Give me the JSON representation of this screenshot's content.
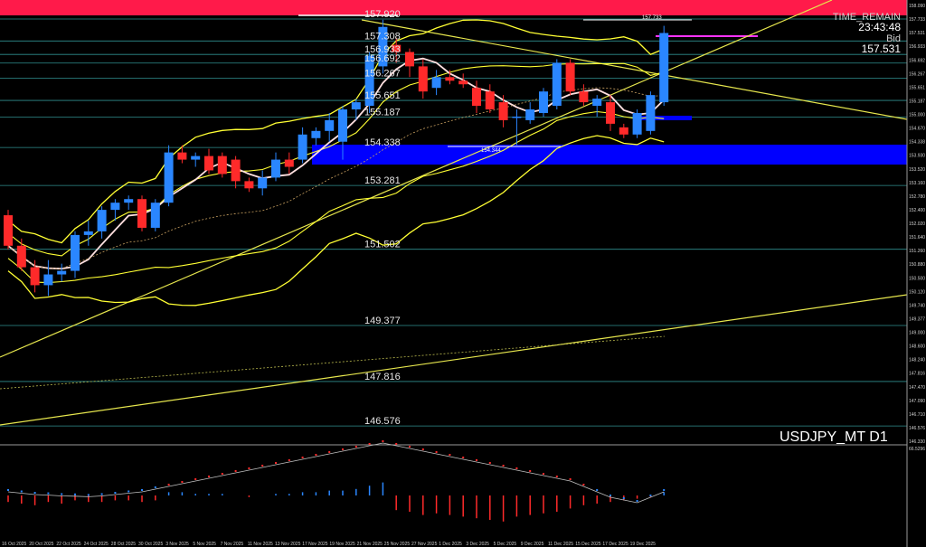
{
  "symbol_label": "USDJPY_MT D1",
  "time_remain": {
    "label": "TIME_REMAIN",
    "value": "23:43:48"
  },
  "bid": {
    "label": "Bid",
    "value": "157.531"
  },
  "high_marker_label": "157.733",
  "low_marker_label": "154.344",
  "levels": [
    {
      "label": "157.920",
      "value": 157.92
    },
    {
      "label": "157.308",
      "value": 157.308
    },
    {
      "label": "156.933",
      "value": 156.933
    },
    {
      "label": "156.692",
      "value": 156.692
    },
    {
      "label": "156.267",
      "value": 156.267
    },
    {
      "label": "155.651",
      "value": 155.651
    },
    {
      "label": "155.187",
      "value": 155.187
    },
    {
      "label": "154.338",
      "value": 154.338
    },
    {
      "label": "153.281",
      "value": 153.281
    },
    {
      "label": "151.502",
      "value": 151.502
    },
    {
      "label": "149.377",
      "value": 149.377
    },
    {
      "label": "147.816",
      "value": 147.816
    },
    {
      "label": "146.576",
      "value": 146.576
    }
  ],
  "price_scale": [
    "158.090",
    "157.733",
    "157.531",
    "156.933",
    "156.692",
    "156.267",
    "155.651",
    "155.187",
    "155.000",
    "154.670",
    "154.338",
    "153.930",
    "153.520",
    "153.160",
    "152.780",
    "152.400",
    "152.020",
    "151.640",
    "151.260",
    "150.880",
    "150.500",
    "150.120",
    "149.740",
    "149.377",
    "149.000",
    "148.600",
    "148.240",
    "147.816",
    "147.470",
    "147.090",
    "146.710",
    "146.576",
    "146.330"
  ],
  "indicator_scale_top": "66.5296",
  "dates": [
    "16 Oct 2025",
    "20 Oct 2025",
    "22 Oct 2025",
    "24 Oct 2025",
    "28 Oct 2025",
    "30 Oct 2025",
    "3 Nov 2025",
    "5 Nov 2025",
    "7 Nov 2025",
    "11 Nov 2025",
    "13 Nov 2025",
    "17 Nov 2025",
    "19 Nov 2025",
    "21 Nov 2025",
    "25 Nov 2025",
    "27 Nov 2025",
    "1 Dec 2025",
    "3 Dec 2025",
    "5 Dec 2025",
    "9 Dec 2025",
    "11 Dec 2025",
    "15 Dec 2025",
    "17 Dec 2025",
    "19 Dec 2025"
  ],
  "colors": {
    "bull": "#2a86ff",
    "bear": "#ff2a2a",
    "band": "#0000ff",
    "top_bar": "#ff1a4a",
    "bollinger": "#ffff33",
    "ma": "#ffe0e0",
    "indicator_line": "#bfbfbf"
  },
  "candles": [
    {
      "o": 152.45,
      "h": 152.6,
      "l": 151.5,
      "c": 151.6
    },
    {
      "o": 151.6,
      "h": 151.8,
      "l": 150.9,
      "c": 151.0
    },
    {
      "o": 151.0,
      "h": 151.2,
      "l": 150.3,
      "c": 150.5
    },
    {
      "o": 150.5,
      "h": 151.2,
      "l": 150.2,
      "c": 150.8
    },
    {
      "o": 150.8,
      "h": 151.1,
      "l": 150.6,
      "c": 150.9
    },
    {
      "o": 150.9,
      "h": 152.0,
      "l": 150.7,
      "c": 151.9
    },
    {
      "o": 151.9,
      "h": 152.3,
      "l": 151.6,
      "c": 152.0
    },
    {
      "o": 152.0,
      "h": 152.7,
      "l": 151.8,
      "c": 152.6
    },
    {
      "o": 152.6,
      "h": 152.9,
      "l": 152.3,
      "c": 152.8
    },
    {
      "o": 152.8,
      "h": 153.0,
      "l": 152.6,
      "c": 152.9
    },
    {
      "o": 152.9,
      "h": 153.0,
      "l": 152.0,
      "c": 152.1
    },
    {
      "o": 152.1,
      "h": 152.9,
      "l": 152.0,
      "c": 152.8
    },
    {
      "o": 152.8,
      "h": 154.4,
      "l": 152.7,
      "c": 154.2
    },
    {
      "o": 154.2,
      "h": 154.4,
      "l": 153.9,
      "c": 154.0
    },
    {
      "o": 154.0,
      "h": 154.2,
      "l": 153.8,
      "c": 154.1
    },
    {
      "o": 154.1,
      "h": 154.3,
      "l": 153.6,
      "c": 153.7
    },
    {
      "o": 154.1,
      "h": 154.2,
      "l": 153.5,
      "c": 153.6
    },
    {
      "o": 154.0,
      "h": 154.1,
      "l": 153.2,
      "c": 153.4
    },
    {
      "o": 153.4,
      "h": 153.5,
      "l": 153.1,
      "c": 153.2
    },
    {
      "o": 153.2,
      "h": 153.7,
      "l": 153.0,
      "c": 153.5
    },
    {
      "o": 153.5,
      "h": 154.2,
      "l": 153.4,
      "c": 154.0
    },
    {
      "o": 154.0,
      "h": 154.2,
      "l": 153.6,
      "c": 153.8
    },
    {
      "o": 154.0,
      "h": 154.9,
      "l": 153.9,
      "c": 154.7
    },
    {
      "o": 154.6,
      "h": 154.9,
      "l": 154.4,
      "c": 154.8
    },
    {
      "o": 154.8,
      "h": 155.3,
      "l": 154.5,
      "c": 155.1
    },
    {
      "o": 154.5,
      "h": 155.5,
      "l": 154.0,
      "c": 155.4
    },
    {
      "o": 155.4,
      "h": 155.7,
      "l": 155.1,
      "c": 155.6
    },
    {
      "o": 155.5,
      "h": 157.0,
      "l": 155.3,
      "c": 156.9
    },
    {
      "o": 156.6,
      "h": 157.9,
      "l": 156.4,
      "c": 157.7
    },
    {
      "o": 157.2,
      "h": 157.4,
      "l": 156.7,
      "c": 157.0
    },
    {
      "o": 157.0,
      "h": 157.1,
      "l": 156.3,
      "c": 156.6
    },
    {
      "o": 156.6,
      "h": 156.8,
      "l": 155.7,
      "c": 155.9
    },
    {
      "o": 156.0,
      "h": 156.5,
      "l": 155.8,
      "c": 156.3
    },
    {
      "o": 156.3,
      "h": 156.5,
      "l": 156.1,
      "c": 156.2
    },
    {
      "o": 156.2,
      "h": 156.4,
      "l": 156.0,
      "c": 156.1
    },
    {
      "o": 156.0,
      "h": 156.2,
      "l": 155.3,
      "c": 155.5
    },
    {
      "o": 155.9,
      "h": 156.1,
      "l": 155.3,
      "c": 155.4
    },
    {
      "o": 155.6,
      "h": 155.8,
      "l": 154.9,
      "c": 155.1
    },
    {
      "o": 155.2,
      "h": 155.4,
      "l": 154.4,
      "c": 155.2
    },
    {
      "o": 155.1,
      "h": 155.6,
      "l": 155.0,
      "c": 155.4
    },
    {
      "o": 155.3,
      "h": 156.0,
      "l": 155.2,
      "c": 155.9
    },
    {
      "o": 155.5,
      "h": 156.8,
      "l": 155.4,
      "c": 156.7
    },
    {
      "o": 156.7,
      "h": 156.8,
      "l": 155.8,
      "c": 155.9
    },
    {
      "o": 155.9,
      "h": 156.1,
      "l": 155.5,
      "c": 155.6
    },
    {
      "o": 155.5,
      "h": 155.8,
      "l": 155.2,
      "c": 155.7
    },
    {
      "o": 155.6,
      "h": 155.8,
      "l": 154.8,
      "c": 155.0
    },
    {
      "o": 154.9,
      "h": 155.0,
      "l": 154.6,
      "c": 154.7
    },
    {
      "o": 154.7,
      "h": 155.4,
      "l": 154.6,
      "c": 155.3
    },
    {
      "o": 154.8,
      "h": 155.9,
      "l": 154.7,
      "c": 155.8
    },
    {
      "o": 155.6,
      "h": 157.73,
      "l": 155.5,
      "c": 157.53
    }
  ],
  "indicator_bars": [
    -4,
    -5,
    -6,
    -4,
    -5,
    -3,
    -4,
    -4,
    -3,
    -3,
    -4,
    -3,
    2,
    2,
    1,
    1,
    1,
    0,
    -1,
    0,
    1,
    1,
    2,
    2,
    3,
    3,
    4,
    6,
    8,
    -9,
    -10,
    -12,
    -11,
    -12,
    -13,
    -14,
    -15,
    -16,
    -13,
    -12,
    -11,
    -10,
    -8,
    -6,
    -5,
    -4,
    -3,
    -2,
    -1,
    2
  ],
  "indicator_line": [
    -2,
    -2.5,
    -3,
    -3.2,
    -3.5,
    -3.6,
    -3.8,
    -3.5,
    -3,
    -2.5,
    -2,
    -1,
    0,
    1,
    2,
    3,
    4,
    5,
    6,
    7,
    8,
    9,
    10,
    11,
    12,
    13,
    14,
    15,
    16,
    15,
    14,
    13,
    12,
    11,
    10,
    9,
    8,
    7,
    6,
    5,
    4,
    3,
    2,
    0,
    -2,
    -4,
    -5,
    -6,
    -4,
    -2
  ]
}
